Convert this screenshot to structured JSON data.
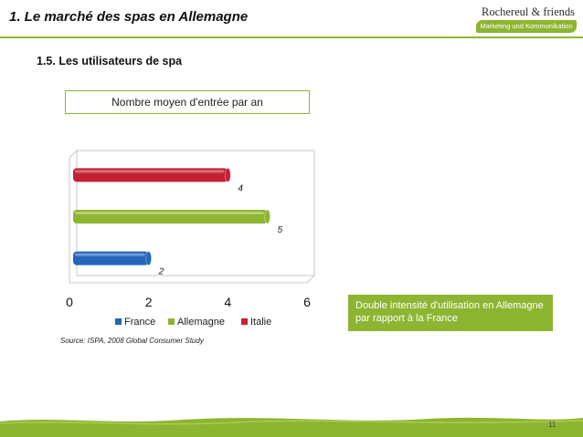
{
  "header": {
    "title": "1. Le marché des spas en Allemagne",
    "logo_main": "Rochereul & friends",
    "logo_tagline": "Marketing und Kommunikation"
  },
  "section_title": "1.5. Les utilisateurs de spa",
  "chart_data": {
    "type": "bar",
    "orientation": "horizontal",
    "title": "Nombre moyen d'entrée par an",
    "categories": [
      "France",
      "Allemagne",
      "Italie"
    ],
    "values": [
      2,
      5,
      4
    ],
    "value_labels": [
      "2",
      "5",
      "4"
    ],
    "colors": [
      "#2565b8",
      "#8db531",
      "#c42034"
    ],
    "xlim": [
      0,
      6
    ],
    "xticks": [
      "0",
      "2",
      "4",
      "6"
    ],
    "legend": {
      "position": "bottom",
      "entries": [
        "France",
        "Allemagne",
        "Italie"
      ]
    },
    "grid": false
  },
  "note": "Double intensité d'utilisation en Allemagne par rapport à la France",
  "source": "Source: ISPA, 2008 Global Consumer Study",
  "page_number": "11",
  "accent_color": "#8db531"
}
